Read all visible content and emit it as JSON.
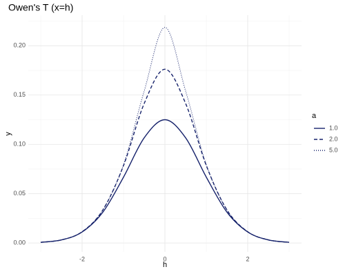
{
  "chart_data": {
    "type": "line",
    "title": "Owen's T (x=h)",
    "x_label": "h",
    "y_label": "y",
    "x": [
      -3,
      -2.5,
      -2,
      -1.5,
      -1,
      -0.5,
      0,
      0.5,
      1,
      1.5,
      2,
      2.5,
      3
    ],
    "series": [
      {
        "name": "1.0",
        "color": "#16226b",
        "dash": "solid",
        "values": [
          0.000674,
          0.003086,
          0.01114,
          0.03117,
          0.06676,
          0.10667,
          0.125,
          0.10667,
          0.06676,
          0.03117,
          0.01114,
          0.003086,
          0.000674
        ]
      },
      {
        "name": "2.0",
        "color": "#16226b",
        "dash": "dashed",
        "values": [
          0.000675,
          0.003104,
          0.01138,
          0.0334,
          0.0785,
          0.1415,
          0.1762,
          0.1415,
          0.0785,
          0.0334,
          0.01138,
          0.003104,
          0.000675
        ]
      },
      {
        "name": "5.0",
        "color": "#16226b",
        "dash": "dotted",
        "values": [
          0.000675,
          0.003105,
          0.01138,
          0.0334,
          0.0793,
          0.1541,
          0.2186,
          0.1541,
          0.0793,
          0.0334,
          0.01138,
          0.003105,
          0.000675
        ]
      }
    ],
    "legend_title": "a",
    "legend_position": "right",
    "xlim": [
      -3.3,
      3.3
    ],
    "xticks": [
      -2,
      0,
      2
    ],
    "x_minor_ticks": [
      -3,
      -1,
      1,
      3
    ],
    "ylim": [
      -0.009,
      0.231
    ],
    "yticks": [
      {
        "value": 0,
        "label": "0.00"
      },
      {
        "value": 0.05,
        "label": "0.05"
      },
      {
        "value": 0.1,
        "label": "0.10"
      },
      {
        "value": 0.15,
        "label": "0.15"
      },
      {
        "value": 0.2,
        "label": "0.20"
      }
    ],
    "y_minor_ticks": [
      0.025,
      0.075,
      0.125,
      0.175,
      0.225
    ],
    "grid": true
  }
}
